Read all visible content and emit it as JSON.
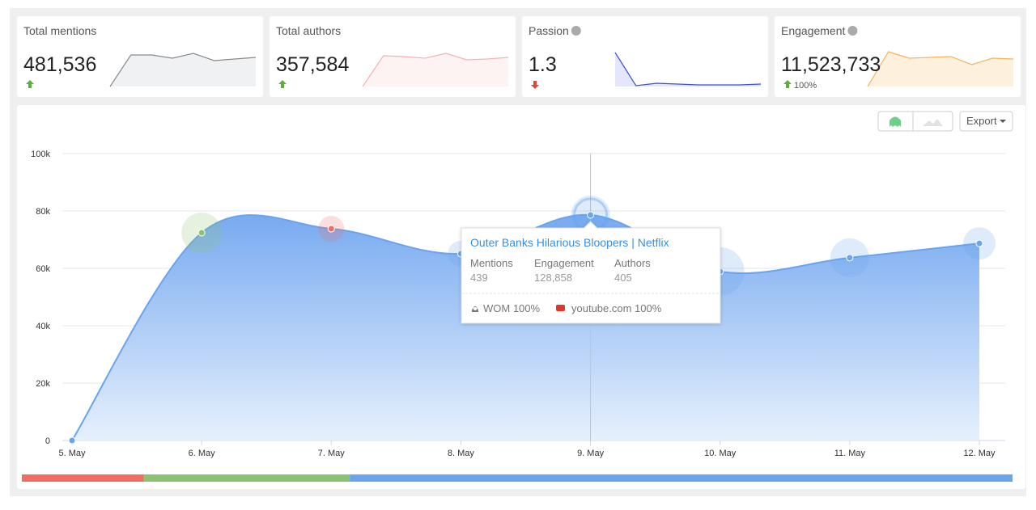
{
  "cards": [
    {
      "title": "Total mentions",
      "value": "481,536",
      "trend": "up",
      "color": "#8a8a8a",
      "fill": "#f0f1f3",
      "spark": [
        0,
        39,
        39,
        35,
        41,
        32,
        34,
        36
      ]
    },
    {
      "title": "Total authors",
      "value": "357,584",
      "trend": "up",
      "color": "#f4b3b3",
      "fill": "#fdf3f3",
      "spark": [
        0,
        38,
        37,
        35,
        41,
        33,
        34,
        36
      ]
    },
    {
      "title": "Passion",
      "value": "1.3",
      "trend": "down",
      "info": true,
      "color": "#3b4fd8",
      "fill": "#e4e7fb",
      "spark": [
        42,
        1,
        4,
        3,
        2,
        2,
        2,
        3
      ]
    },
    {
      "title": "Engagement",
      "value": "11,523,733",
      "trend": "up",
      "change": "100%",
      "info": true,
      "color": "#f5b35c",
      "fill": "#fdf0dc",
      "spark": [
        0,
        43,
        35,
        36,
        37,
        27,
        35,
        34
      ]
    }
  ],
  "export": "Export",
  "chart_data": {
    "type": "area",
    "categories": [
      "5. May",
      "6. May",
      "7. May",
      "8. May",
      "9. May",
      "10. May",
      "11. May",
      "12. May"
    ],
    "values": [
      0,
      72400,
      73800,
      65100,
      78600,
      58900,
      63700,
      68700
    ],
    "point_colors": [
      "#6aa3ee",
      "#8cc26e",
      "#ee6f62",
      "#6aa3ee",
      "#6aa3ee",
      "#6aa3ee",
      "#6aa3ee",
      "#6aa3ee"
    ],
    "color": "#6aa3ee",
    "ylim": [
      0,
      100000
    ],
    "yticks": [
      0,
      {
        "value": 20000,
        "label": "20k"
      },
      {
        "value": 40000,
        "label": "40k"
      },
      {
        "value": 60000,
        "label": "60k"
      },
      {
        "value": 80000,
        "label": "80k"
      },
      {
        "value": 100000,
        "label": "100k"
      }
    ],
    "grid": true,
    "highlight": 4,
    "tooltip": {
      "title": "Outer Banks Hilarious Bloopers | Netflix",
      "columns": [
        {
          "label": "Mentions",
          "value": "439"
        },
        {
          "label": "Engagement",
          "value": "128,858"
        },
        {
          "label": "Authors",
          "value": "405"
        }
      ],
      "sources": [
        "WOM 100%",
        "youtube.com 100%"
      ]
    },
    "distribution": [
      {
        "color": "#ee6f62",
        "value": 12.3
      },
      {
        "color": "#8cc26e",
        "value": 20.8
      },
      {
        "color": "#6aa3ee",
        "value": 66.9
      }
    ]
  }
}
